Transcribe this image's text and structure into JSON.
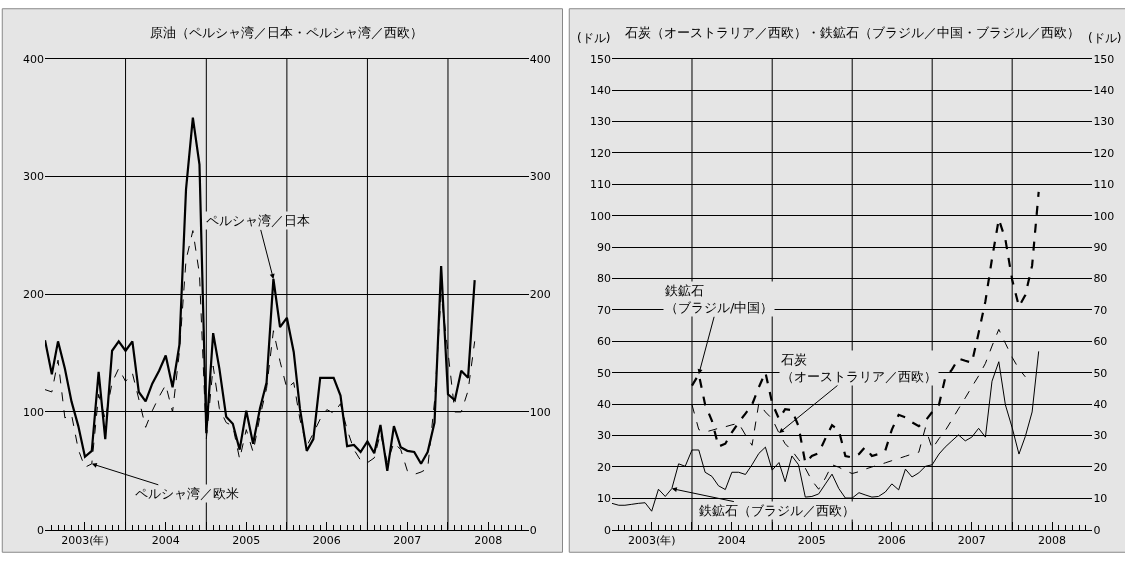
{
  "chart_data": [
    {
      "type": "line",
      "title": "原油（ペルシャ湾／日本・ペルシャ湾／西欧）",
      "x": [
        "2003-01",
        "2003-02",
        "2003-03",
        "2003-04",
        "2003-05",
        "2003-06",
        "2003-07",
        "2003-08",
        "2003-09",
        "2003-10",
        "2003-11",
        "2003-12",
        "2004-01",
        "2004-02",
        "2004-03",
        "2004-04",
        "2004-05",
        "2004-06",
        "2004-07",
        "2004-08",
        "2004-09",
        "2004-10",
        "2004-11",
        "2004-12",
        "2005-01",
        "2005-02",
        "2005-03",
        "2005-04",
        "2005-05",
        "2005-06",
        "2005-07",
        "2005-08",
        "2005-09",
        "2005-10",
        "2005-11",
        "2005-12",
        "2006-01",
        "2006-02",
        "2006-03",
        "2006-04",
        "2006-05",
        "2006-06",
        "2006-07",
        "2006-08",
        "2006-09",
        "2006-10",
        "2006-11",
        "2006-12",
        "2007-01",
        "2007-02",
        "2007-03",
        "2007-04",
        "2007-05",
        "2007-06",
        "2007-07",
        "2007-08",
        "2007-09",
        "2007-10",
        "2007-11",
        "2007-12",
        "2008-01",
        "2008-02",
        "2008-03",
        "2008-04",
        "2008-05"
      ],
      "series": [
        {
          "color": "#000000",
          "line_style": "solid",
          "values": [
            161,
            132,
            160,
            137,
            109,
            88,
            62,
            67,
            134,
            77,
            152,
            160,
            152,
            160,
            117,
            109,
            124,
            135,
            148,
            121,
            157,
            289,
            350,
            310,
            82,
            167,
            137,
            96,
            90,
            68,
            101,
            73,
            103,
            125,
            213,
            172,
            180,
            151,
            103,
            67,
            77,
            129,
            129,
            129,
            114,
            71,
            72,
            66,
            75,
            65,
            89,
            50,
            88,
            70,
            67,
            66,
            56,
            66,
            91,
            224,
            115,
            110,
            135,
            129,
            212
          ]
        },
        {
          "color": "#000000",
          "line_style": "dashed",
          "values": [
            119,
            117,
            144,
            95,
            98,
            68,
            53,
            56,
            115,
            94,
            125,
            137,
            126,
            133,
            111,
            87,
            101,
            113,
            123,
            100,
            151,
            229,
            254,
            217,
            77,
            139,
            103,
            91,
            88,
            60,
            85,
            66,
            96,
            120,
            169,
            143,
            120,
            125,
            94,
            71,
            82,
            94,
            102,
            99,
            107,
            85,
            68,
            59,
            57,
            61,
            82,
            57,
            74,
            68,
            50,
            47,
            49,
            52,
            109,
            200,
            151,
            100,
            100,
            118,
            160
          ]
        }
      ],
      "xlim": [
        "2003-01",
        "2009-01"
      ],
      "xticks": [
        {
          "value": "2003-07",
          "label": "2003(年)"
        },
        {
          "value": "2004-01",
          "label": null
        },
        {
          "value": "2004-07",
          "label": "2004"
        },
        {
          "value": "2005-01",
          "label": null
        },
        {
          "value": "2005-07",
          "label": "2005"
        },
        {
          "value": "2006-01",
          "label": null
        },
        {
          "value": "2006-07",
          "label": "2006"
        },
        {
          "value": "2007-01",
          "label": null
        },
        {
          "value": "2007-07",
          "label": "2007"
        },
        {
          "value": "2008-01",
          "label": null
        },
        {
          "value": "2008-07",
          "label": "2008"
        }
      ],
      "ylim": [
        0,
        400
      ],
      "yticks": [
        0,
        100,
        200,
        300,
        400
      ],
      "y2lim": [
        0,
        400
      ],
      "y2ticks": [
        0,
        100,
        200,
        300,
        400
      ],
      "grid": true,
      "annotations": [
        {
          "text": "ペルシャ湾／日本",
          "x": "2005-11",
          "y": 213
        },
        {
          "text": "ペルシャ湾／欧米",
          "x": "2003-08",
          "y": 56
        }
      ]
    },
    {
      "type": "line",
      "title": "石炭（オーストラリア／西欧）・鉄鉱石（ブラジル／中国・ブラジル／西欧）",
      "ylabel": "(ドル)",
      "y2label": "(ドル)",
      "x": [
        "2003-01",
        "2003-02",
        "2003-03",
        "2003-04",
        "2003-05",
        "2003-06",
        "2003-07",
        "2003-08",
        "2003-09",
        "2003-10",
        "2003-11",
        "2003-12",
        "2004-01",
        "2004-02",
        "2004-03",
        "2004-04",
        "2004-05",
        "2004-06",
        "2004-07",
        "2004-08",
        "2004-09",
        "2004-10",
        "2004-11",
        "2004-12",
        "2005-01",
        "2005-02",
        "2005-03",
        "2005-04",
        "2005-05",
        "2005-06",
        "2005-07",
        "2005-08",
        "2005-09",
        "2005-10",
        "2005-11",
        "2005-12",
        "2006-01",
        "2006-02",
        "2006-03",
        "2006-04",
        "2006-05",
        "2006-06",
        "2006-07",
        "2006-08",
        "2006-09",
        "2006-10",
        "2006-11",
        "2006-12",
        "2007-01",
        "2007-02",
        "2007-03",
        "2007-04",
        "2007-05",
        "2007-06",
        "2007-07",
        "2007-08",
        "2007-09",
        "2007-10",
        "2007-11",
        "2007-12",
        "2008-01",
        "2008-02",
        "2008-03",
        "2008-04",
        "2008-05"
      ],
      "series": [
        {
          "color": "#000000",
          "line_style": "solid",
          "values": [
            8.4,
            7.8,
            7.8,
            8.1,
            8.4,
            8.6,
            5.9,
            12.9,
            10.6,
            13.1,
            21,
            20.2,
            25.4,
            25.4,
            18.3,
            17,
            14,
            12.8,
            18.3,
            18.3,
            17.6,
            20.7,
            24.3,
            26.3,
            19,
            21.4,
            15.3,
            23.5,
            20.7,
            10.4,
            10.6,
            11.4,
            14.6,
            17.7,
            13.1,
            10.1,
            10.1,
            11.8,
            11.1,
            10.4,
            10.6,
            12,
            14.6,
            12.7,
            19.3,
            16.8,
            18.1,
            20.2,
            20.7,
            24.1,
            26.3,
            28.3,
            30.2,
            28.3,
            29.5,
            32.3,
            29.5,
            47.3,
            53.5,
            39.8,
            32.5,
            24.1,
            29.7,
            37.5,
            56.8
          ]
        },
        {
          "color": "#000000",
          "line_style": "dashed",
          "values": [
            null,
            null,
            null,
            null,
            null,
            null,
            null,
            null,
            null,
            null,
            null,
            null,
            45.9,
            49.5,
            39.8,
            34.7,
            26.5,
            27.4,
            31,
            34.2,
            37,
            39.8,
            45.4,
            50.1,
            40.3,
            35.3,
            38.4,
            38.1,
            33,
            21.3,
            23.5,
            24.4,
            29.1,
            33.3,
            31.6,
            23.5,
            23,
            24.1,
            26.3,
            23.5,
            24.1,
            25.2,
            31.9,
            36.6,
            35.8,
            34.2,
            33,
            34.7,
            37.5,
            39.8,
            48.2,
            51,
            54.5,
            53.8,
            53.2,
            62.7,
            72.8,
            86.3,
            98.9,
            92.5,
            79.6,
            71.1,
            74.7,
            84.1,
            107.6
          ]
        },
        {
          "color": "#000000",
          "line_style": "dashed",
          "values": [
            null,
            null,
            null,
            null,
            null,
            null,
            null,
            null,
            null,
            null,
            null,
            null,
            39.8,
            31.9,
            31.1,
            31.7,
            32.3,
            32.8,
            33.4,
            33.9,
            30.2,
            26.9,
            40.3,
            37.5,
            35.3,
            30.8,
            27.4,
            25.2,
            22.4,
            19.6,
            15.7,
            12.9,
            16.5,
            20.7,
            19.9,
            18.8,
            17.9,
            18.5,
            19.3,
            20,
            20.6,
            21.3,
            22,
            22.7,
            23.4,
            24.1,
            24.7,
            32.5,
            25.8,
            29,
            31.5,
            35,
            38.5,
            42,
            45.5,
            49,
            53,
            58.5,
            63.8,
            59.4,
            54.9,
            51.2,
            48.7,
            null,
            null
          ]
        }
      ],
      "xlim": [
        "2003-01",
        "2009-01"
      ],
      "xticks": [
        {
          "value": "2003-07",
          "label": "2003(年)"
        },
        {
          "value": "2004-01",
          "label": null
        },
        {
          "value": "2004-07",
          "label": "2004"
        },
        {
          "value": "2005-01",
          "label": null
        },
        {
          "value": "2005-07",
          "label": "2005"
        },
        {
          "value": "2006-01",
          "label": null
        },
        {
          "value": "2006-07",
          "label": "2006"
        },
        {
          "value": "2007-01",
          "label": null
        },
        {
          "value": "2007-07",
          "label": "2007"
        },
        {
          "value": "2008-01",
          "label": null
        },
        {
          "value": "2008-07",
          "label": "2008"
        }
      ],
      "ylim": [
        0,
        150
      ],
      "yticks": [
        0,
        10,
        20,
        30,
        40,
        50,
        60,
        70,
        80,
        90,
        100,
        110,
        120,
        130,
        140,
        150
      ],
      "y2lim": [
        0,
        150
      ],
      "y2ticks": [
        0,
        10,
        20,
        30,
        40,
        50,
        60,
        70,
        80,
        90,
        100,
        110,
        120,
        130,
        140,
        150
      ],
      "grid": true,
      "annotations": [
        {
          "text": "鉄鉱石（ブラジル/中国）",
          "x": "2004-02",
          "y": 49.5
        },
        {
          "text": "石炭（オーストラリア／西欧）",
          "x": "2005-02",
          "y": 30.8
        },
        {
          "text": "鉄鉱石（ブラジル／西欧）",
          "x": "2003-10",
          "y": 13.1
        }
      ]
    }
  ]
}
